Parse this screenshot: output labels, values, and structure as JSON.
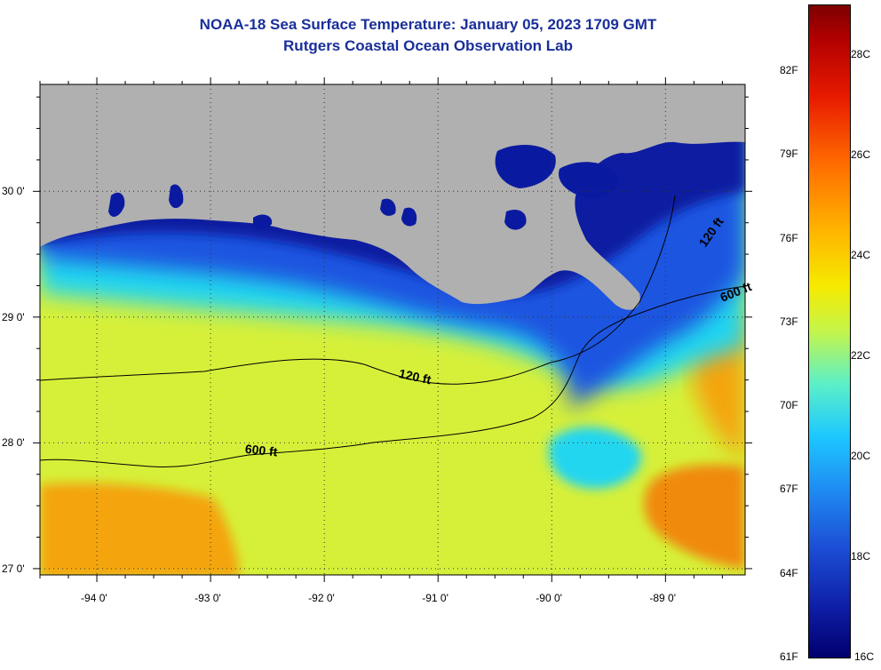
{
  "title": {
    "line1": "NOAA-18 Sea Surface Temperature:  January 05, 2023 1709 GMT",
    "line2": "Rutgers Coastal Ocean Observation Lab"
  },
  "map": {
    "lon_range": [
      -94.5,
      -88.3
    ],
    "lat_range": [
      26.95,
      30.85
    ],
    "lon_ticks": [
      -94,
      -93,
      -92,
      -91,
      -90,
      -89
    ],
    "lon_labels": [
      "-94 0'",
      "-93 0'",
      "-92 0'",
      "-91 0'",
      "-90 0'",
      "-89 0'"
    ],
    "lat_ticks": [
      30,
      29,
      28,
      27
    ],
    "lat_labels": [
      "30 0'",
      "29 0'",
      "28 0'",
      "27 0'"
    ],
    "contour_labels": [
      {
        "text": "120 ft",
        "lon": -91.35,
        "lat": 28.52,
        "angle": 12
      },
      {
        "text": "600 ft",
        "lon": -92.7,
        "lat": 27.92,
        "angle": 6
      },
      {
        "text": "120 ft",
        "lon": -88.65,
        "lat": 29.55,
        "angle": -55
      },
      {
        "text": "600 ft",
        "lon": -88.5,
        "lat": 29.12,
        "angle": -22
      }
    ],
    "colors": {
      "land": "#b0b0b0",
      "nearshore": "#0a1aa0",
      "shelf": "#1a55e0",
      "mid": "#22d6f0",
      "offshore": "#d6f03a",
      "warm": "#f4a40a",
      "warmest": "#f08a08"
    }
  },
  "colorbar": {
    "f_labels": [
      "82F",
      "79F",
      "76F",
      "73F",
      "70F",
      "67F",
      "64F",
      "61F"
    ],
    "c_labels": [
      "28C",
      "26C",
      "24C",
      "22C",
      "20C",
      "18C",
      "16C"
    ]
  }
}
